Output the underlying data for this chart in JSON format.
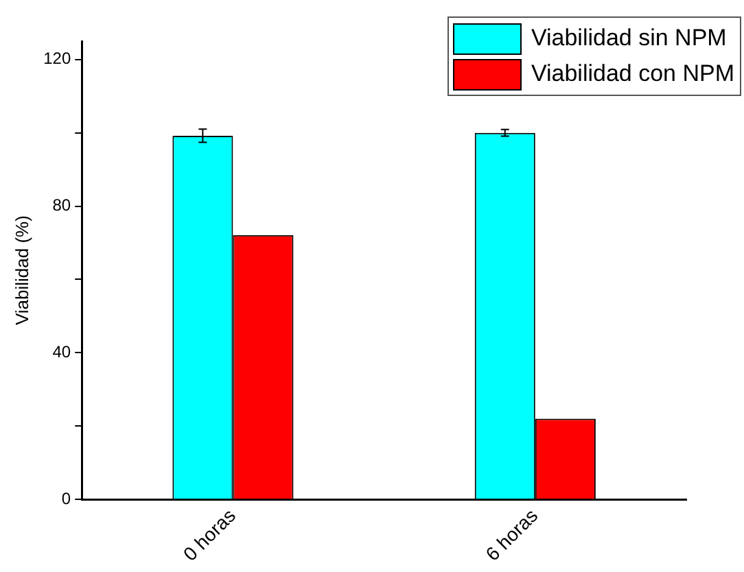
{
  "chart_data": {
    "type": "bar",
    "ylabel": "Viabilidad (%)",
    "categories": [
      "0 horas",
      "6 horas"
    ],
    "series": [
      {
        "name": "Viabilidad sin NPM",
        "color": "#00ffff",
        "values": [
          99.2,
          100.0
        ],
        "errors": [
          1.8,
          0.9
        ]
      },
      {
        "name": "Viabilidad con NPM",
        "color": "#ff0000",
        "values": [
          72.1,
          22.0
        ]
      }
    ],
    "ylim": [
      0,
      125
    ],
    "yticks": [
      0,
      {
        "value": 20,
        "label": null
      },
      40,
      {
        "value": 60,
        "label": null
      },
      80,
      {
        "value": 100,
        "label": null
      },
      120
    ],
    "grid": false,
    "legend": "top right"
  }
}
